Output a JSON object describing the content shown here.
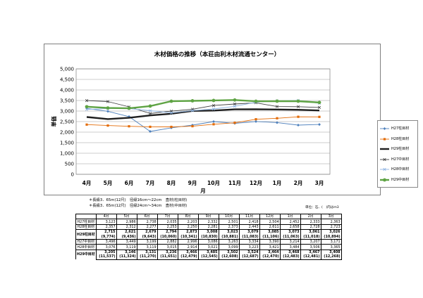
{
  "chart_data": {
    "type": "line",
    "title": "木材価格の推移（本荘由利木材流通センター）",
    "xlabel": "月",
    "ylabel": "単価",
    "ylim": [
      0,
      5000
    ],
    "yticks": [
      "0",
      "500",
      "1,000",
      "1,500",
      "2,000",
      "2,500",
      "3,000",
      "3,500",
      "4,000",
      "4,500",
      "5,000"
    ],
    "categories": [
      "4月",
      "5月",
      "6月",
      "7月",
      "8月",
      "9月",
      "10月",
      "11月",
      "12月",
      "1月",
      "2月",
      "3月"
    ],
    "legend_position": "right",
    "grid": true,
    "series": [
      {
        "name": "H27柱目材",
        "color": "#4f81bd",
        "values": [
          3123,
          2986,
          2738,
          2035,
          2203,
          2332,
          2501,
          2418,
          2504,
          2452,
          2333,
          2363
        ]
      },
      {
        "name": "H28柱目材",
        "color": "#e36c09",
        "values": [
          2357,
          2312,
          2277,
          2253,
          2250,
          2281,
          2373,
          2443,
          2611,
          2658,
          2728,
          2723
        ]
      },
      {
        "name": "H29柱目材",
        "color": "#1f1f1f",
        "values": [
          2715,
          2621,
          2679,
          2794,
          2873,
          3008,
          3023,
          3079,
          3085,
          3073,
          3061,
          3026
        ]
      },
      {
        "name": "H27中目材",
        "color": "#404040",
        "values": [
          3496,
          3449,
          3199,
          2882,
          2996,
          3086,
          3263,
          3334,
          3390,
          3214,
          3207,
          3171
        ]
      },
      {
        "name": "H28中目材",
        "color": "#8db3e2",
        "values": [
          3076,
          3119,
          3119,
          3015,
          2914,
          3021,
          3099,
          3223,
          3421,
          3484,
          3506,
          3365
        ]
      },
      {
        "name": "H29中目材",
        "color": "#5ea343",
        "values": [
          3205,
          3146,
          3131,
          3236,
          3466,
          3485,
          3502,
          3524,
          3464,
          3468,
          3467,
          3408
        ]
      }
    ]
  },
  "notes": [
    "＊長級3．65m(12尺)　径級16cm～22cm　直材(柱目材)",
    "＊長級3．65m(12尺)　径級24cm～34cm　直材(中目材)"
  ],
  "unit_note": "単位：石、(　)内はm3",
  "table": {
    "months": [
      "4月",
      "5月",
      "6月",
      "7月",
      "8月",
      "9月",
      "10月",
      "11月",
      "12月",
      "1月",
      "2月",
      "3月"
    ],
    "rows": [
      {
        "label": "H27柱目材",
        "values": [
          "3,123",
          "2,986",
          "2,738",
          "2,035",
          "2,203",
          "2,332",
          "2,501",
          "2,418",
          "2,504",
          "2,452",
          "2,333",
          "2,363"
        ]
      },
      {
        "label": "H28柱目材",
        "values": [
          "2,357",
          "2,312",
          "2,277",
          "2,253",
          "2,250",
          "2,281",
          "2,373",
          "2,443",
          "2,611",
          "2,658",
          "2,728",
          "2,723"
        ]
      },
      {
        "label": "H29柱目材",
        "bold": true,
        "values": [
          "2,715",
          "2,621",
          "2,679",
          "2,794",
          "2,873",
          "3,008",
          "3,023",
          "3,079",
          "3,085",
          "3,073",
          "3,061",
          "3,026"
        ],
        "sub": [
          "(9,774)",
          "(9,436)",
          "(9,643)",
          "(10,060)",
          "(10,341)",
          "(10,830)",
          "(10,881)",
          "(11,083)",
          "(11,106)",
          "(11,063)",
          "(11,018)",
          "(10,894)"
        ]
      },
      {
        "label": "H27中目材",
        "values": [
          "3,496",
          "3,449",
          "3,199",
          "2,882",
          "2,996",
          "3,086",
          "3,263",
          "3,334",
          "3,390",
          "3,214",
          "3,207",
          "3,171"
        ]
      },
      {
        "label": "H28中目材",
        "values": [
          "3,076",
          "3,119",
          "3,119",
          "3,015",
          "2,914",
          "3,021",
          "3,099",
          "3,223",
          "3,421",
          "3,484",
          "3,506",
          "3,365"
        ]
      },
      {
        "label": "H29中目材",
        "bold": true,
        "values": [
          "3,205",
          "3,146",
          "3,131",
          "3,236",
          "3,466",
          "3,485",
          "3,502",
          "3,524",
          "3,464",
          "3,468",
          "3,467",
          "3,408"
        ],
        "sub": [
          "(11,537)",
          "(11,324)",
          "(11,270)",
          "(11,651)",
          "(12,479)",
          "(12,545)",
          "(12,608)",
          "(12,687)",
          "(12,470)",
          "(12,483)",
          "(12,481)",
          "(12,268)"
        ]
      }
    ]
  }
}
